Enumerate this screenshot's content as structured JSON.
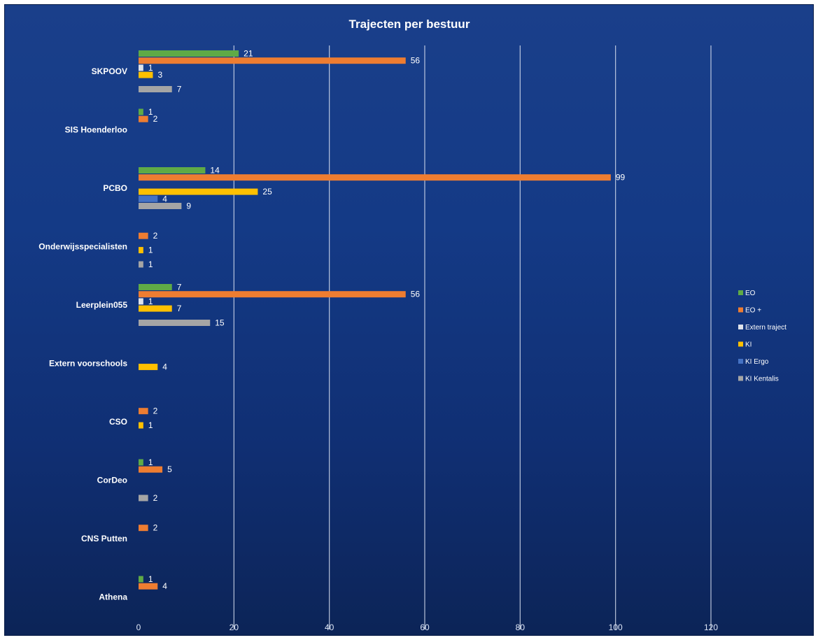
{
  "chart_data": {
    "type": "bar",
    "orientation": "horizontal",
    "title": "Trajecten per bestuur",
    "xlim": [
      0,
      120
    ],
    "xticks": [
      0,
      20,
      40,
      60,
      80,
      100,
      120
    ],
    "grid": true,
    "legend_position": "right",
    "categories": [
      "SKPOOV",
      "SIS Hoenderloo",
      "PCBO",
      "Onderwijsspecialisten",
      "Leerplein055",
      "Extern voorschools",
      "CSO",
      "CorDeo",
      "CNS Putten",
      "Athena"
    ],
    "series": [
      {
        "name": "EO",
        "color": "#5faa46",
        "values": [
          21,
          1,
          14,
          null,
          7,
          null,
          null,
          1,
          null,
          1
        ]
      },
      {
        "name": "EO +",
        "color": "#ee7d31",
        "values": [
          56,
          2,
          99,
          2,
          56,
          null,
          2,
          5,
          2,
          4
        ]
      },
      {
        "name": "Extern traject",
        "color": "#dfe3ea",
        "values": [
          1,
          null,
          null,
          null,
          1,
          null,
          null,
          null,
          null,
          null
        ]
      },
      {
        "name": "KI",
        "color": "#ffc000",
        "values": [
          3,
          null,
          25,
          1,
          7,
          4,
          1,
          null,
          null,
          null
        ]
      },
      {
        "name": "KI Ergo",
        "color": "#4472c4",
        "values": [
          null,
          null,
          4,
          null,
          null,
          null,
          null,
          null,
          null,
          null
        ]
      },
      {
        "name": "KI Kentalis",
        "color": "#a5a5a5",
        "values": [
          7,
          null,
          9,
          1,
          15,
          null,
          null,
          2,
          null,
          null
        ]
      }
    ]
  }
}
